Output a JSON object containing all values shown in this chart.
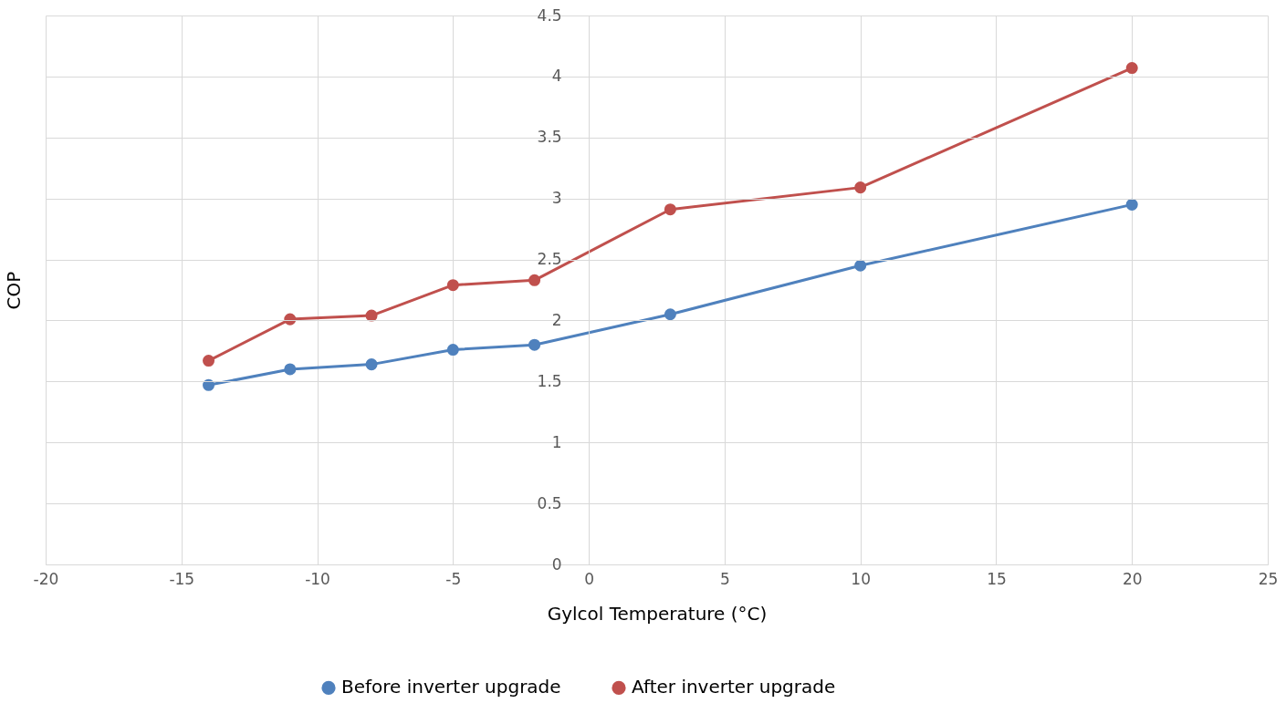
{
  "chart_data": {
    "type": "line",
    "xlabel": "Gylcol Temperature (°C)",
    "ylabel": "COP",
    "xlim": [
      -20,
      25
    ],
    "xticks": [
      -20,
      -15,
      -10,
      -5,
      0,
      5,
      10,
      15,
      20,
      25
    ],
    "ylim": [
      0,
      4.5
    ],
    "yticks": [
      0,
      0.5,
      1,
      1.5,
      2,
      2.5,
      3,
      3.5,
      4,
      4.5
    ],
    "grid": true,
    "legend": "bottom",
    "marker": "circle",
    "x": [
      -14,
      -11,
      -8,
      -5,
      -2,
      3,
      10,
      20
    ],
    "series": [
      {
        "name": "Before inverter upgrade",
        "color": "#4f81bd",
        "values": [
          1.47,
          1.6,
          1.64,
          1.76,
          1.8,
          2.05,
          2.45,
          2.95
        ]
      },
      {
        "name": "After inverter upgrade",
        "color": "#c0504d",
        "values": [
          1.67,
          2.01,
          2.04,
          2.29,
          2.33,
          2.91,
          3.09,
          4.07
        ]
      }
    ]
  }
}
